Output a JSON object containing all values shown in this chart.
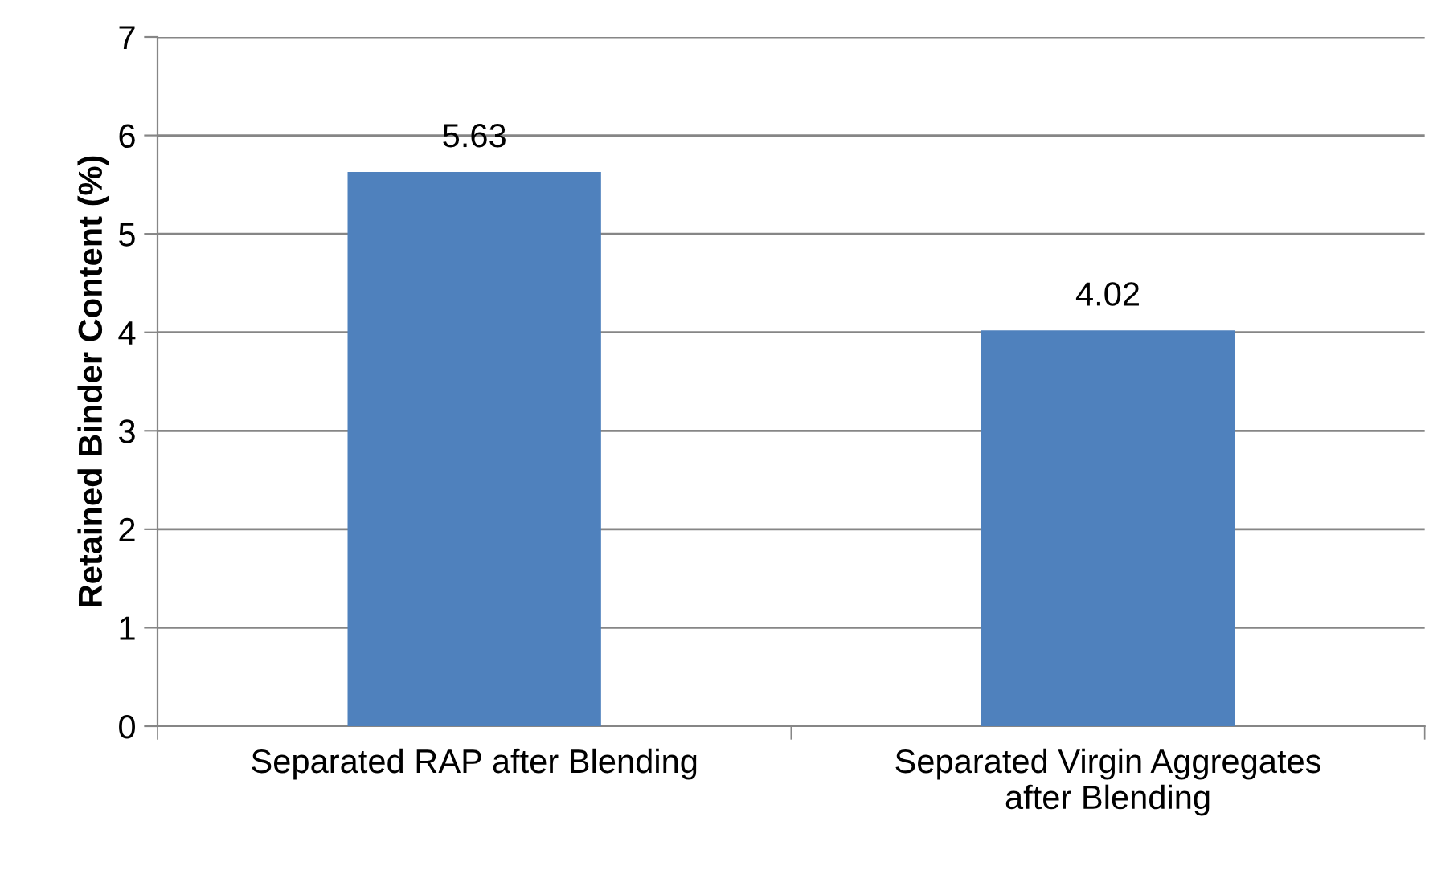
{
  "chart_data": {
    "type": "bar",
    "ylabel": "Retained Binder Content (%)",
    "categories": [
      "Separated RAP after Blending",
      "Separated Virgin Aggregates\nafter Blending"
    ],
    "values": [
      5.63,
      4.02
    ],
    "color": "#4f81bd",
    "ylim": [
      0,
      7
    ],
    "yticks": [
      0,
      1,
      2,
      3,
      4,
      5,
      6,
      7
    ],
    "grid": "y",
    "data_labels": true
  }
}
